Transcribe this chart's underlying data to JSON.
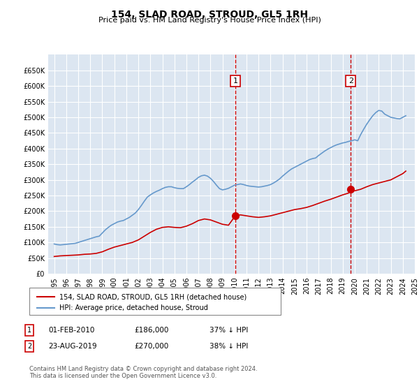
{
  "title": "154, SLAD ROAD, STROUD, GL5 1RH",
  "subtitle": "Price paid vs. HM Land Registry's House Price Index (HPI)",
  "legend_label_red": "154, SLAD ROAD, STROUD, GL5 1RH (detached house)",
  "legend_label_blue": "HPI: Average price, detached house, Stroud",
  "annotation1": {
    "label": "1",
    "date": "01-FEB-2010",
    "price": "£186,000",
    "pct": "37% ↓ HPI"
  },
  "annotation2": {
    "label": "2",
    "date": "23-AUG-2019",
    "price": "£270,000",
    "pct": "38% ↓ HPI"
  },
  "footnote": "Contains HM Land Registry data © Crown copyright and database right 2024.\nThis data is licensed under the Open Government Licence v3.0.",
  "red_color": "#cc0000",
  "blue_color": "#6699cc",
  "background_color": "#dce6f1",
  "grid_color": "#ffffff",
  "annotation_line_color": "#cc0000",
  "ylim": [
    0,
    700000
  ],
  "yticks": [
    0,
    50000,
    100000,
    150000,
    200000,
    250000,
    300000,
    350000,
    400000,
    450000,
    500000,
    550000,
    600000,
    650000
  ],
  "hpi_x": [
    1995.0,
    1995.25,
    1995.5,
    1995.75,
    1996.0,
    1996.25,
    1996.5,
    1996.75,
    1997.0,
    1997.25,
    1997.5,
    1997.75,
    1998.0,
    1998.25,
    1998.5,
    1998.75,
    1999.0,
    1999.25,
    1999.5,
    1999.75,
    2000.0,
    2000.25,
    2000.5,
    2000.75,
    2001.0,
    2001.25,
    2001.5,
    2001.75,
    2002.0,
    2002.25,
    2002.5,
    2002.75,
    2003.0,
    2003.25,
    2003.5,
    2003.75,
    2004.0,
    2004.25,
    2004.5,
    2004.75,
    2005.0,
    2005.25,
    2005.5,
    2005.75,
    2006.0,
    2006.25,
    2006.5,
    2006.75,
    2007.0,
    2007.25,
    2007.5,
    2007.75,
    2008.0,
    2008.25,
    2008.5,
    2008.75,
    2009.0,
    2009.25,
    2009.5,
    2009.75,
    2010.0,
    2010.25,
    2010.5,
    2010.75,
    2011.0,
    2011.25,
    2011.5,
    2011.75,
    2012.0,
    2012.25,
    2012.5,
    2012.75,
    2013.0,
    2013.25,
    2013.5,
    2013.75,
    2014.0,
    2014.25,
    2014.5,
    2014.75,
    2015.0,
    2015.25,
    2015.5,
    2015.75,
    2016.0,
    2016.25,
    2016.5,
    2016.75,
    2017.0,
    2017.25,
    2017.5,
    2017.75,
    2018.0,
    2018.25,
    2018.5,
    2018.75,
    2019.0,
    2019.25,
    2019.5,
    2019.75,
    2020.0,
    2020.25,
    2020.5,
    2020.75,
    2021.0,
    2021.25,
    2021.5,
    2021.75,
    2022.0,
    2022.25,
    2022.5,
    2022.75,
    2023.0,
    2023.25,
    2023.5,
    2023.75,
    2024.0,
    2024.25
  ],
  "hpi_y": [
    95000,
    93000,
    92000,
    93000,
    94000,
    95000,
    96000,
    97000,
    100000,
    103000,
    106000,
    109000,
    112000,
    115000,
    118000,
    120000,
    130000,
    140000,
    148000,
    155000,
    160000,
    165000,
    168000,
    170000,
    175000,
    180000,
    187000,
    194000,
    205000,
    218000,
    232000,
    245000,
    252000,
    258000,
    263000,
    267000,
    272000,
    276000,
    278000,
    278000,
    275000,
    273000,
    272000,
    272000,
    278000,
    285000,
    293000,
    300000,
    308000,
    313000,
    315000,
    312000,
    305000,
    295000,
    283000,
    272000,
    268000,
    270000,
    273000,
    278000,
    283000,
    285000,
    287000,
    285000,
    282000,
    280000,
    279000,
    278000,
    277000,
    278000,
    280000,
    282000,
    285000,
    290000,
    296000,
    303000,
    312000,
    320000,
    328000,
    335000,
    340000,
    345000,
    350000,
    355000,
    360000,
    365000,
    368000,
    370000,
    378000,
    385000,
    392000,
    398000,
    403000,
    408000,
    412000,
    415000,
    418000,
    420000,
    423000,
    425000,
    428000,
    425000,
    445000,
    462000,
    478000,
    492000,
    505000,
    515000,
    522000,
    520000,
    510000,
    505000,
    500000,
    498000,
    496000,
    495000,
    500000,
    505000
  ],
  "red_x": [
    1995.0,
    1995.5,
    1996.0,
    1996.5,
    1997.0,
    1997.5,
    1998.0,
    1998.5,
    1999.0,
    1999.5,
    2000.0,
    2000.5,
    2001.0,
    2001.5,
    2002.0,
    2002.5,
    2003.0,
    2003.5,
    2004.0,
    2004.5,
    2005.0,
    2005.5,
    2006.0,
    2006.5,
    2007.0,
    2007.5,
    2008.0,
    2008.5,
    2009.0,
    2009.5,
    2010.083,
    2010.5,
    2011.0,
    2011.5,
    2012.0,
    2012.5,
    2013.0,
    2013.5,
    2014.0,
    2014.5,
    2015.0,
    2015.5,
    2016.0,
    2016.5,
    2017.0,
    2017.5,
    2018.0,
    2018.5,
    2019.0,
    2019.5,
    2019.667,
    2020.0,
    2020.5,
    2021.0,
    2021.5,
    2022.0,
    2022.5,
    2023.0,
    2023.5,
    2024.0,
    2024.25
  ],
  "red_y": [
    55000,
    57000,
    58000,
    59000,
    60000,
    62000,
    63000,
    65000,
    70000,
    78000,
    85000,
    90000,
    95000,
    100000,
    108000,
    120000,
    132000,
    142000,
    148000,
    150000,
    148000,
    147000,
    152000,
    160000,
    170000,
    175000,
    172000,
    165000,
    158000,
    155000,
    186000,
    188000,
    185000,
    182000,
    180000,
    182000,
    185000,
    190000,
    195000,
    200000,
    205000,
    208000,
    212000,
    218000,
    225000,
    232000,
    238000,
    245000,
    252000,
    258000,
    270000,
    265000,
    270000,
    278000,
    285000,
    290000,
    295000,
    300000,
    310000,
    320000,
    328000
  ],
  "marker1_x": 2010.083,
  "marker1_y": 186000,
  "marker2_x": 2019.667,
  "marker2_y": 270000,
  "vline1_x": 2010.083,
  "vline2_x": 2019.667,
  "xmin": 1994.5,
  "xmax": 2025.0
}
